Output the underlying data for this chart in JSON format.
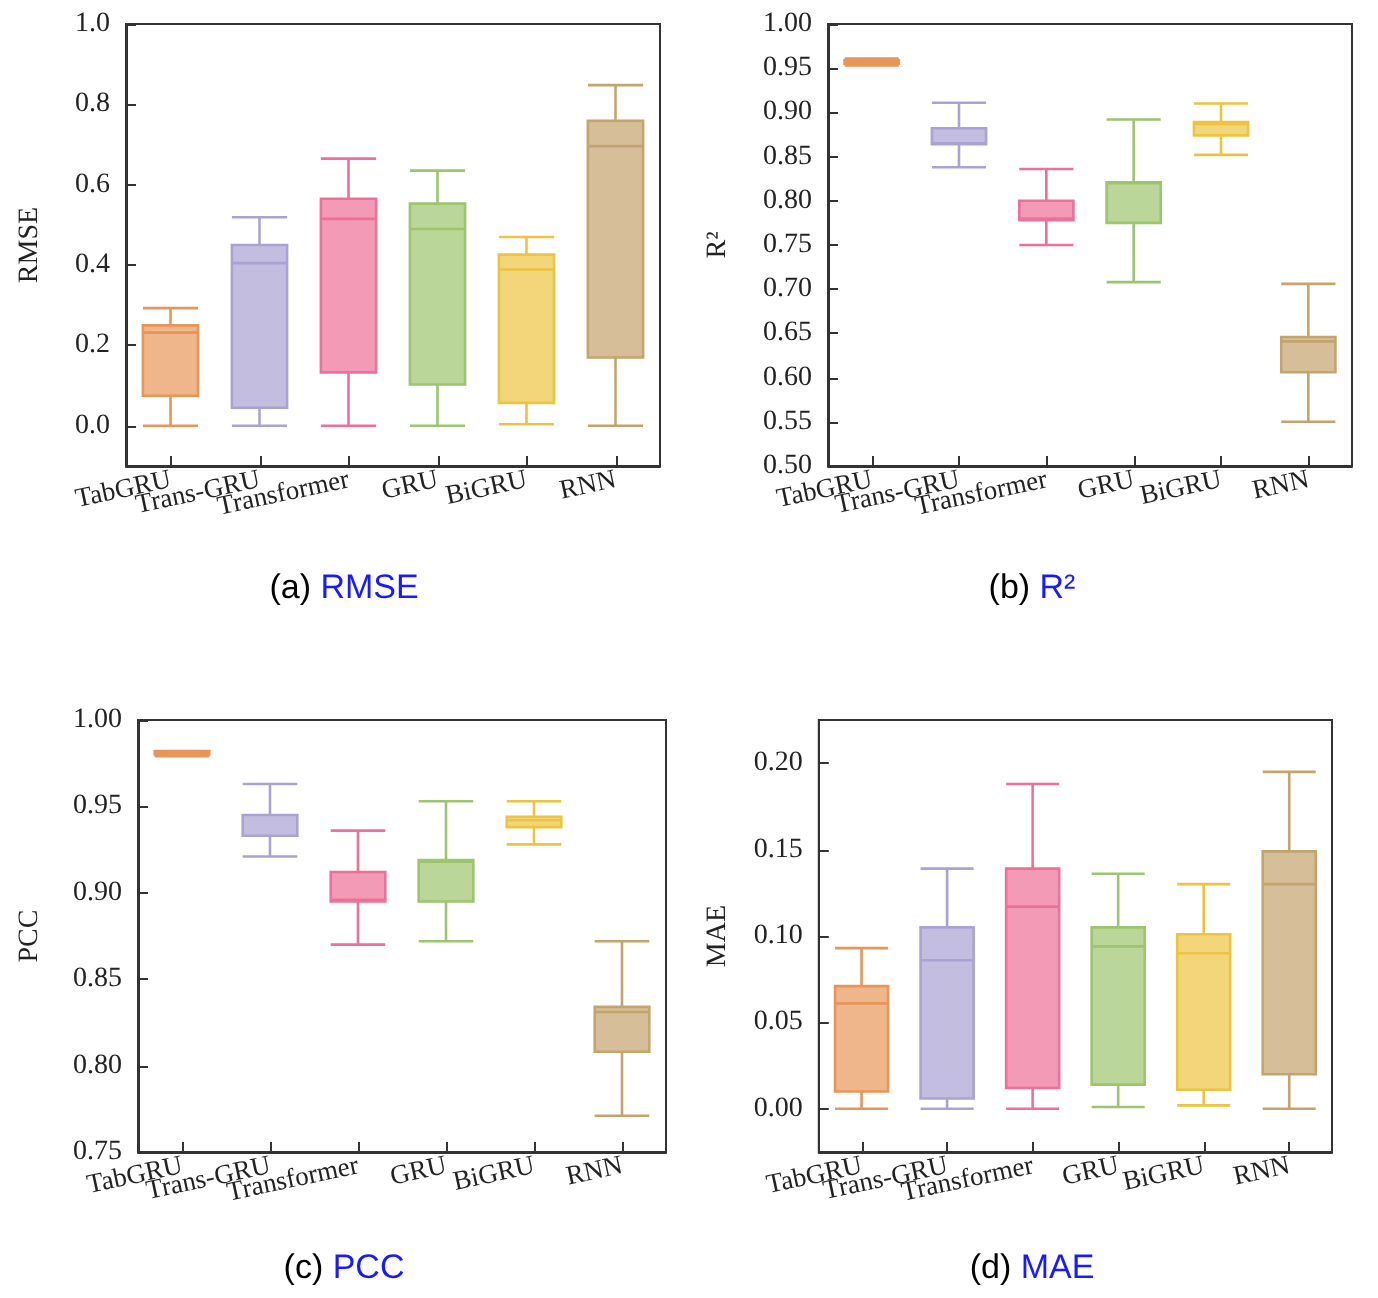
{
  "chart_data": [
    {
      "type": "box",
      "title": "(a) RMSE",
      "ylabel": "RMSE",
      "categories": [
        "TabGRU",
        "Trans-GRU",
        "Transformer",
        "GRU",
        "BiGRU",
        "RNN"
      ],
      "colors": [
        "#e8955a",
        "#a9a3d3",
        "#ee6f98",
        "#9cc56e",
        "#ecc440",
        "#c4a46c"
      ],
      "boxes": [
        {
          "low": 0,
          "q1": 0.075,
          "median": 0.232,
          "q3": 0.25,
          "high": 0.293
        },
        {
          "low": 0,
          "q1": 0.045,
          "median": 0.405,
          "q3": 0.45,
          "high": 0.519
        },
        {
          "low": 0,
          "q1": 0.133,
          "median": 0.515,
          "q3": 0.565,
          "high": 0.665
        },
        {
          "low": 0,
          "q1": 0.103,
          "median": 0.49,
          "q3": 0.553,
          "high": 0.635
        },
        {
          "low": 0.004,
          "q1": 0.057,
          "median": 0.389,
          "q3": 0.426,
          "high": 0.47
        },
        {
          "low": 0,
          "q1": 0.17,
          "median": 0.696,
          "q3": 0.759,
          "high": 0.848
        }
      ],
      "ylim": [
        -0.1,
        1.0
      ],
      "yticks": [
        {
          "value": 0,
          "label": "0.0"
        },
        0.2,
        0.4,
        0.6,
        0.8,
        {
          "value": 1,
          "label": "1.0"
        }
      ],
      "grid": false
    },
    {
      "type": "box",
      "title": "(b) R²",
      "ylabel": "R²",
      "categories": [
        "TabGRU",
        "Trans-GRU",
        "Transformer",
        "GRU",
        "BiGRU",
        "RNN"
      ],
      "colors": [
        "#e8955a",
        "#a9a3d3",
        "#ee6f98",
        "#9cc56e",
        "#ecc440",
        "#c4a46c"
      ],
      "boxes": [
        {
          "low": 0.953,
          "q1": 0.955,
          "median": 0.957,
          "q3": 0.959,
          "high": 0.961
        },
        {
          "low": 0.838,
          "q1": 0.864,
          "median": 0.865,
          "q3": 0.882,
          "high": 0.911
        },
        {
          "low": 0.75,
          "q1": 0.778,
          "median": 0.78,
          "q3": 0.8,
          "high": 0.836
        },
        {
          "low": 0.708,
          "q1": 0.775,
          "median": 0.82,
          "q3": 0.821,
          "high": 0.892
        },
        {
          "low": 0.852,
          "q1": 0.874,
          "median": 0.887,
          "q3": 0.889,
          "high": 0.91
        },
        {
          "low": 0.55,
          "q1": 0.606,
          "median": 0.641,
          "q3": 0.646,
          "high": 0.706
        }
      ],
      "ylim": [
        0.5,
        1.0
      ],
      "yticks": [
        {
          "value": 0.5,
          "label": "0.50"
        },
        0.55,
        {
          "value": 0.6,
          "label": "0.60"
        },
        0.65,
        {
          "value": 0.7,
          "label": "0.70"
        },
        0.75,
        {
          "value": 0.8,
          "label": "0.80"
        },
        0.85,
        {
          "value": 0.9,
          "label": "0.90"
        },
        0.95,
        {
          "value": 1,
          "label": "1.00"
        }
      ],
      "grid": false
    },
    {
      "type": "box",
      "title": "(c) PCC",
      "ylabel": "PCC",
      "categories": [
        "TabGRU",
        "Trans-GRU",
        "Transformer",
        "GRU",
        "BiGRU",
        "RNN"
      ],
      "colors": [
        "#e8955a",
        "#a9a3d3",
        "#ee6f98",
        "#9cc56e",
        "#ecc440",
        "#c4a46c"
      ],
      "boxes": [
        {
          "low": 0.979,
          "q1": 0.98,
          "median": 0.981,
          "q3": 0.982,
          "high": 0.982
        },
        {
          "low": 0.921,
          "q1": 0.933,
          "median": 0.933,
          "q3": 0.945,
          "high": 0.963
        },
        {
          "low": 0.87,
          "q1": 0.895,
          "median": 0.896,
          "q3": 0.912,
          "high": 0.936
        },
        {
          "low": 0.872,
          "q1": 0.895,
          "median": 0.918,
          "q3": 0.919,
          "high": 0.953
        },
        {
          "low": 0.928,
          "q1": 0.938,
          "median": 0.942,
          "q3": 0.944,
          "high": 0.953
        },
        {
          "low": 0.771,
          "q1": 0.808,
          "median": 0.831,
          "q3": 0.834,
          "high": 0.872
        }
      ],
      "ylim": [
        0.75,
        1.0
      ],
      "yticks": [
        0.75,
        {
          "value": 0.8,
          "label": "0.80"
        },
        0.85,
        {
          "value": 0.9,
          "label": "0.90"
        },
        0.95,
        {
          "value": 1,
          "label": "1.00"
        }
      ],
      "grid": false
    },
    {
      "type": "box",
      "title": "(d) MAE",
      "ylabel": "MAE",
      "categories": [
        "TabGRU",
        "Trans-GRU",
        "Transformer",
        "GRU",
        "BiGRU",
        "RNN"
      ],
      "colors": [
        "#e8955a",
        "#a9a3d3",
        "#ee6f98",
        "#9cc56e",
        "#ecc440",
        "#c4a46c"
      ],
      "boxes": [
        {
          "low": 0,
          "q1": 0.01,
          "median": 0.061,
          "q3": 0.071,
          "high": 0.093
        },
        {
          "low": 0,
          "q1": 0.006,
          "median": 0.086,
          "q3": 0.105,
          "high": 0.139
        },
        {
          "low": 0,
          "q1": 0.012,
          "median": 0.117,
          "q3": 0.139,
          "high": 0.188
        },
        {
          "low": 0.001,
          "q1": 0.014,
          "median": 0.094,
          "q3": 0.105,
          "high": 0.136
        },
        {
          "low": 0.002,
          "q1": 0.011,
          "median": 0.09,
          "q3": 0.101,
          "high": 0.13
        },
        {
          "low": 0,
          "q1": 0.02,
          "median": 0.13,
          "q3": 0.149,
          "high": 0.195
        }
      ],
      "ylim": [
        -0.025,
        0.225
      ],
      "yticks": [
        {
          "value": 0,
          "label": "0.00"
        },
        0.05,
        {
          "value": 0.1,
          "label": "0.10"
        },
        0.15,
        {
          "value": 0.2,
          "label": "0.20"
        }
      ],
      "grid": false
    }
  ]
}
